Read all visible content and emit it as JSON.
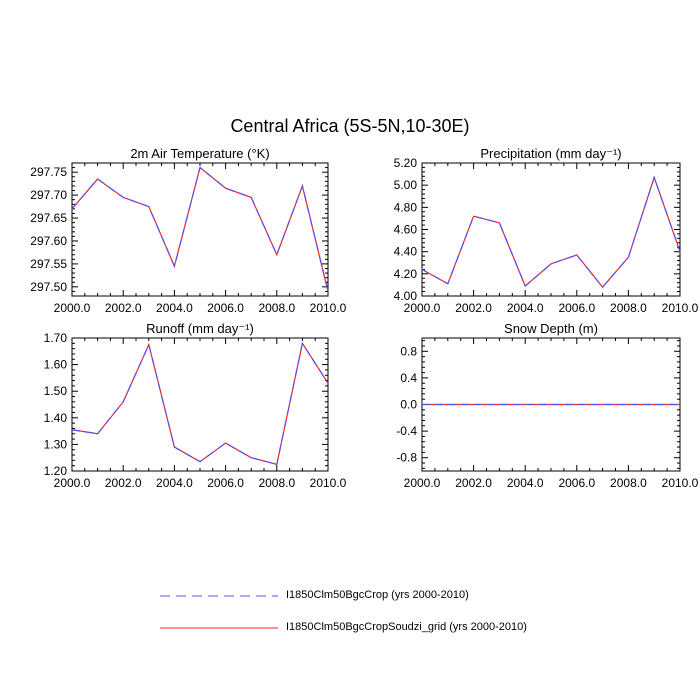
{
  "title": "Central Africa (5S-5N,10-30E)",
  "colors": {
    "series1": "#5050ff",
    "series2": "#ff2020",
    "axis": "#000000"
  },
  "legend": [
    {
      "label": "I1850Clm50BgcCrop (yrs 2000-2010)",
      "color": "#5050ff",
      "dash": true
    },
    {
      "label": "I1850Clm50BgcCropSoudzi_grid (yrs 2000-2010)",
      "color": "#ff2020",
      "dash": false
    }
  ],
  "chart_data": [
    {
      "type": "line",
      "title": "2m Air Temperature (°K)",
      "x": [
        2000,
        2001,
        2002,
        2003,
        2004,
        2005,
        2006,
        2007,
        2008,
        2009,
        2010
      ],
      "xlim": [
        2000,
        2010
      ],
      "xticks": [
        2000,
        2002,
        2004,
        2006,
        2008,
        2010
      ],
      "xtick_labels": [
        "2000.0",
        "2002.0",
        "2004.0",
        "2006.0",
        "2008.0",
        "2010.0"
      ],
      "ylim": [
        297.48,
        297.77
      ],
      "yticks": [
        297.5,
        297.55,
        297.6,
        297.65,
        297.7,
        297.75
      ],
      "ytick_labels": [
        "297.50",
        "297.55",
        "297.60",
        "297.65",
        "297.70",
        "297.75"
      ],
      "series": [
        {
          "name": "I1850Clm50BgcCrop (yrs 2000-2010)",
          "values": [
            297.67,
            297.735,
            297.695,
            297.675,
            297.545,
            297.76,
            297.715,
            297.695,
            297.57,
            297.72,
            297.49
          ]
        },
        {
          "name": "I1850Clm50BgcCropSoudzi_grid (yrs 2000-2010)",
          "values": [
            297.67,
            297.735,
            297.695,
            297.675,
            297.545,
            297.76,
            297.715,
            297.695,
            297.57,
            297.72,
            297.49
          ]
        }
      ]
    },
    {
      "type": "line",
      "title": "Precipitation (mm day⁻¹)",
      "x": [
        2000,
        2001,
        2002,
        2003,
        2004,
        2005,
        2006,
        2007,
        2008,
        2009,
        2010
      ],
      "xlim": [
        2000,
        2010
      ],
      "xticks": [
        2000,
        2002,
        2004,
        2006,
        2008,
        2010
      ],
      "xtick_labels": [
        "2000.0",
        "2002.0",
        "2004.0",
        "2006.0",
        "2008.0",
        "2010.0"
      ],
      "ylim": [
        4.0,
        5.2
      ],
      "yticks": [
        4.0,
        4.2,
        4.4,
        4.6,
        4.8,
        5.0,
        5.2
      ],
      "ytick_labels": [
        "4.00",
        "4.20",
        "4.40",
        "4.60",
        "4.80",
        "5.00",
        "5.20"
      ],
      "series": [
        {
          "name": "I1850Clm50BgcCrop (yrs 2000-2010)",
          "values": [
            4.24,
            4.11,
            4.72,
            4.66,
            4.09,
            4.29,
            4.37,
            4.08,
            4.35,
            5.07,
            4.4
          ]
        },
        {
          "name": "I1850Clm50BgcCropSoudzi_grid (yrs 2000-2010)",
          "values": [
            4.24,
            4.11,
            4.72,
            4.66,
            4.09,
            4.29,
            4.37,
            4.08,
            4.35,
            5.07,
            4.4
          ]
        }
      ]
    },
    {
      "type": "line",
      "title": "Runoff (mm day⁻¹)",
      "x": [
        2000,
        2001,
        2002,
        2003,
        2004,
        2005,
        2006,
        2007,
        2008,
        2009,
        2010
      ],
      "xlim": [
        2000,
        2010
      ],
      "xticks": [
        2000,
        2002,
        2004,
        2006,
        2008,
        2010
      ],
      "xtick_labels": [
        "2000.0",
        "2002.0",
        "2004.0",
        "2006.0",
        "2008.0",
        "2010.0"
      ],
      "ylim": [
        1.2,
        1.7
      ],
      "yticks": [
        1.2,
        1.3,
        1.4,
        1.5,
        1.6,
        1.7
      ],
      "ytick_labels": [
        "1.20",
        "1.30",
        "1.40",
        "1.50",
        "1.60",
        "1.70"
      ],
      "series": [
        {
          "name": "I1850Clm50BgcCrop (yrs 2000-2010)",
          "values": [
            1.355,
            1.34,
            1.46,
            1.675,
            1.29,
            1.235,
            1.305,
            1.25,
            1.225,
            1.68,
            1.53
          ]
        },
        {
          "name": "I1850Clm50BgcCropSoudzi_grid (yrs 2000-2010)",
          "values": [
            1.355,
            1.34,
            1.46,
            1.675,
            1.29,
            1.235,
            1.305,
            1.25,
            1.225,
            1.68,
            1.53
          ]
        }
      ]
    },
    {
      "type": "line",
      "title": "Snow Depth (m)",
      "x": [
        2000,
        2001,
        2002,
        2003,
        2004,
        2005,
        2006,
        2007,
        2008,
        2009,
        2010
      ],
      "xlim": [
        2000,
        2010
      ],
      "xticks": [
        2000,
        2002,
        2004,
        2006,
        2008,
        2010
      ],
      "xtick_labels": [
        "2000.0",
        "2002.0",
        "2004.0",
        "2006.0",
        "2008.0",
        "2010.0"
      ],
      "ylim": [
        -1.0,
        1.0
      ],
      "yticks": [
        -0.8,
        -0.4,
        0.0,
        0.4,
        0.8
      ],
      "ytick_labels": [
        "-0.8",
        "-0.4",
        "0.0",
        "0.4",
        "0.8"
      ],
      "series": [
        {
          "name": "I1850Clm50BgcCrop (yrs 2000-2010)",
          "values": [
            0,
            0,
            0,
            0,
            0,
            0,
            0,
            0,
            0,
            0,
            0
          ]
        },
        {
          "name": "I1850Clm50BgcCropSoudzi_grid (yrs 2000-2010)",
          "values": [
            0,
            0,
            0,
            0,
            0,
            0,
            0,
            0,
            0,
            0,
            0
          ]
        }
      ]
    }
  ]
}
